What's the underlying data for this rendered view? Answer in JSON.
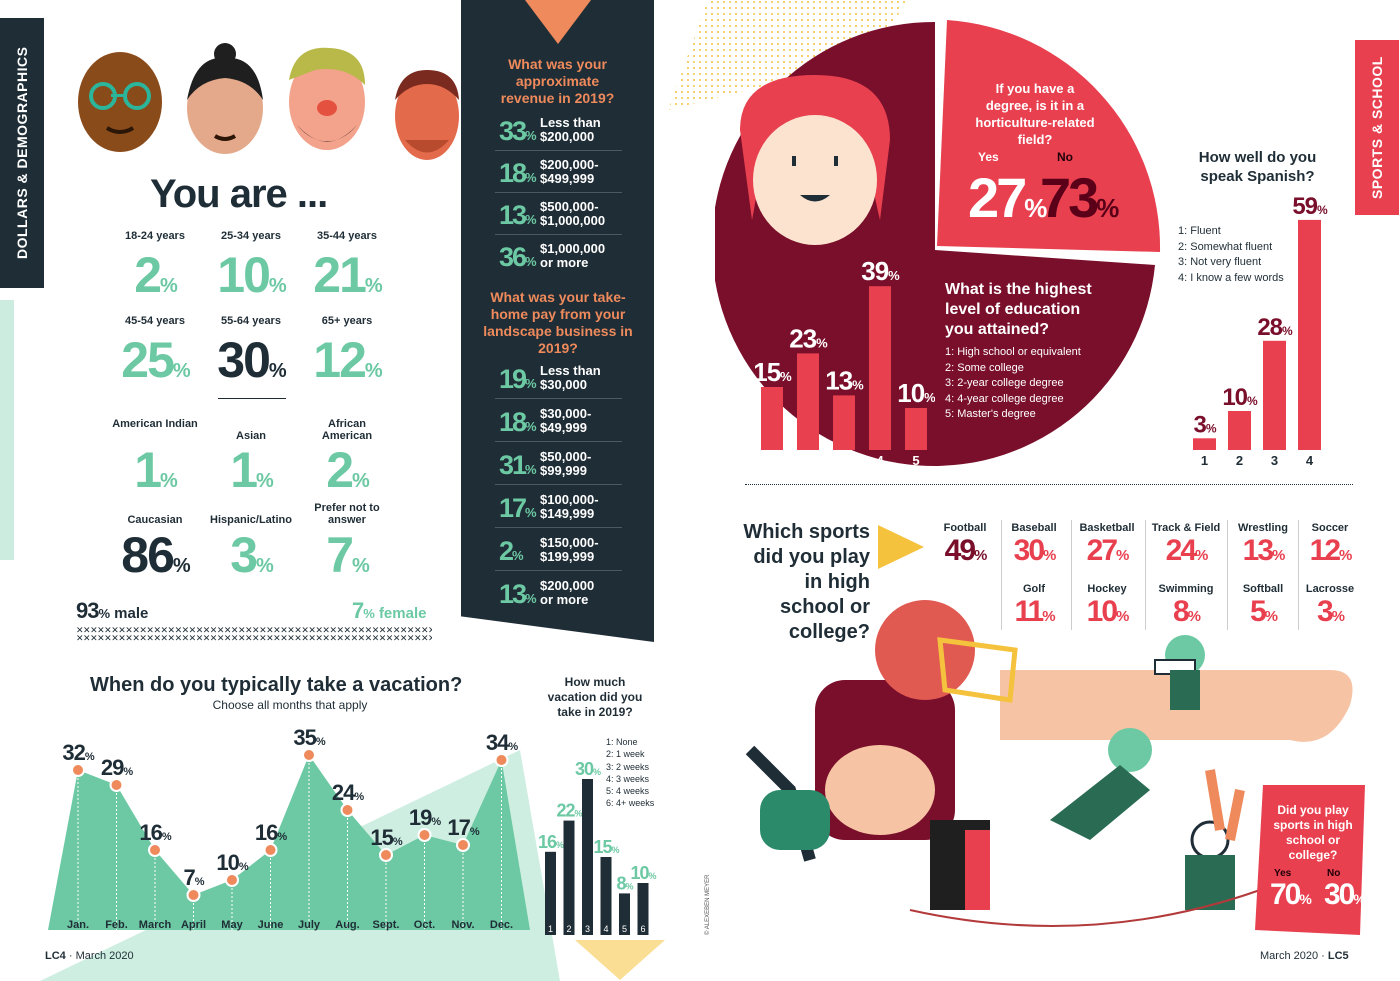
{
  "left_tab": "DOLLARS & DEMOGRAPHICS",
  "right_tab": "SPORTS & SCHOOL",
  "you_are": {
    "title": "You are ...",
    "ages": [
      {
        "label": "18-24 years",
        "value": "2"
      },
      {
        "label": "25-34 years",
        "value": "10"
      },
      {
        "label": "35-44 years",
        "value": "21"
      },
      {
        "label": "45-54 years",
        "value": "25"
      },
      {
        "label": "55-64 years",
        "value": "30"
      },
      {
        "label": "65+ years",
        "value": "12"
      }
    ],
    "ethnicity": [
      {
        "label": "American Indian",
        "value": "1"
      },
      {
        "label": "Asian",
        "value": "1"
      },
      {
        "label": "African American",
        "value": "2"
      },
      {
        "label": "Caucasian",
        "value": "86"
      },
      {
        "label": "Hispanic/Latino",
        "value": "3"
      },
      {
        "label": "Prefer not to answer",
        "value": "7"
      }
    ],
    "male_pct": "93",
    "male_label": "male",
    "female_pct": "7",
    "female_label": "female"
  },
  "pct_sign": "%",
  "revenue": {
    "question": "What was your approximate revenue in 2019?",
    "rows": [
      {
        "pct": "33",
        "label": "Less than $200,000"
      },
      {
        "pct": "18",
        "label": "$200,000- $499,999"
      },
      {
        "pct": "13",
        "label": "$500,000- $1,000,000"
      },
      {
        "pct": "36",
        "label": "$1,000,000 or more"
      }
    ]
  },
  "takehome": {
    "question": "What was your take-home pay from your landscape business in 2019?",
    "rows": [
      {
        "pct": "19",
        "label": "Less than $30,000"
      },
      {
        "pct": "18",
        "label": "$30,000- $49,999"
      },
      {
        "pct": "31",
        "label": "$50,000- $99,999"
      },
      {
        "pct": "17",
        "label": "$100,000- $149,999"
      },
      {
        "pct": "2",
        "label": "$150,000- $199,999"
      },
      {
        "pct": "13",
        "label": "$200,000 or more"
      }
    ]
  },
  "horticulture": {
    "question": "If you have a degree, is it in a horticulture-related field?",
    "yes_label": "Yes",
    "yes_value": "27",
    "no_label": "No",
    "no_value": "73"
  },
  "education_legend": {
    "question": "What is the highest level of education you attained?",
    "items": [
      "1: High school or equivalent",
      "2: Some college",
      "3: 2-year college degree",
      "4: 4-year college degree",
      "5: Master's degree"
    ]
  },
  "spanish_legend": {
    "question": "How well do you speak Spanish?",
    "items": [
      "1: Fluent",
      "2: Somewhat fluent",
      "3: Not very fluent",
      "4: I know a few words"
    ]
  },
  "sports": {
    "question": "Which sports did you play in high school or college?",
    "items": [
      {
        "name": "Football",
        "value": "49"
      },
      {
        "name": "Baseball",
        "value": "30"
      },
      {
        "name": "Basketball",
        "value": "27"
      },
      {
        "name": "Track & Field",
        "value": "24"
      },
      {
        "name": "Wrestling",
        "value": "13"
      },
      {
        "name": "Soccer",
        "value": "12"
      },
      {
        "name": "Golf",
        "value": "11"
      },
      {
        "name": "Hockey",
        "value": "10"
      },
      {
        "name": "Swimming",
        "value": "8"
      },
      {
        "name": "Softball",
        "value": "5"
      },
      {
        "name": "Lacrosse",
        "value": "3"
      }
    ]
  },
  "played_sports": {
    "question": "Did you play sports in high school or college?",
    "yes_label": "Yes",
    "yes_value": "70",
    "no_label": "No",
    "no_value": "30"
  },
  "vacation_months": {
    "title": "When do you typically take a vacation?",
    "subtitle": "Choose all months that apply"
  },
  "vacation_amount": {
    "question": "How much vacation did you take in 2019?",
    "items": [
      "1: None",
      "2: 1 week",
      "3: 2 weeks",
      "4: 3 weeks",
      "5: 4 weeks",
      "6: 4+ weeks"
    ]
  },
  "footer": {
    "left_code": "LC4",
    "left_date": "March 2020",
    "right_date": "March 2020",
    "right_code": "LC5",
    "credit": "© ALEXEBEN MEYER"
  },
  "colors": {
    "navy": "#1f2d36",
    "mint": "#6cc9a3",
    "red": "#e8404f",
    "maroon": "#7a0f2b",
    "orange": "#ee8a5b",
    "yellow": "#f5c23d"
  },
  "chart_data": [
    {
      "type": "area",
      "id": "vacation-months",
      "title": "When do you typically take a vacation?",
      "subtitle": "Choose all months that apply",
      "categories": [
        "Jan.",
        "Feb.",
        "March",
        "April",
        "May",
        "June",
        "July",
        "Aug.",
        "Sept.",
        "Oct.",
        "Nov.",
        "Dec."
      ],
      "values": [
        32,
        29,
        16,
        7,
        10,
        16,
        35,
        24,
        15,
        19,
        17,
        34
      ],
      "unit": "%"
    },
    {
      "type": "bar",
      "id": "vacation-amount",
      "title": "How much vacation did you take in 2019?",
      "categories": [
        "1",
        "2",
        "3",
        "4",
        "5",
        "6"
      ],
      "values": [
        16,
        22,
        30,
        15,
        8,
        10
      ],
      "unit": "%"
    },
    {
      "type": "bar",
      "id": "education",
      "title": "What is the highest level of education you attained?",
      "categories": [
        "1",
        "2",
        "3",
        "4",
        "5"
      ],
      "values": [
        15,
        23,
        13,
        39,
        10
      ],
      "unit": "%"
    },
    {
      "type": "bar",
      "id": "spanish",
      "title": "How well do you speak Spanish?",
      "categories": [
        "1",
        "2",
        "3",
        "4"
      ],
      "values": [
        3,
        10,
        28,
        59
      ],
      "unit": "%"
    }
  ]
}
